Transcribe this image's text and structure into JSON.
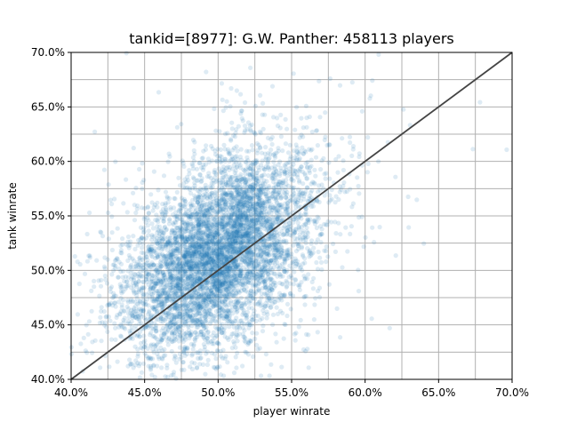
{
  "chart_data": {
    "type": "scatter",
    "title": "tankid=[8977]: G.W. Panther: 458113 players",
    "xlabel": "player winrate",
    "ylabel": "tank winrate",
    "xlim": [
      0.4,
      0.7
    ],
    "ylim": [
      0.4,
      0.7
    ],
    "x_ticks": [
      {
        "value": 0.4,
        "label": "40.0%"
      },
      {
        "value": 0.45,
        "label": "45.0%"
      },
      {
        "value": 0.5,
        "label": "50.0%"
      },
      {
        "value": 0.55,
        "label": "55.0%"
      },
      {
        "value": 0.6,
        "label": "60.0%"
      },
      {
        "value": 0.65,
        "label": "65.0%"
      },
      {
        "value": 0.7,
        "label": "70.0%"
      }
    ],
    "y_ticks": [
      {
        "value": 0.4,
        "label": "40.0%"
      },
      {
        "value": 0.45,
        "label": "45.0%"
      },
      {
        "value": 0.5,
        "label": "50.0%"
      },
      {
        "value": 0.55,
        "label": "55.0%"
      },
      {
        "value": 0.6,
        "label": "60.0%"
      },
      {
        "value": 0.65,
        "label": "65.0%"
      },
      {
        "value": 0.7,
        "label": "70.0%"
      }
    ],
    "minor_gridlines": [
      0.425,
      0.475,
      0.525,
      0.575,
      0.625,
      0.675
    ],
    "grid": true,
    "point_count": 458113,
    "point_color": "#1f77b4",
    "point_alpha": 0.15,
    "cluster": {
      "center": [
        0.5,
        0.515
      ],
      "std": [
        0.032,
        0.045
      ],
      "correlation": 0.45
    },
    "reference_line": {
      "from": [
        0.4,
        0.4
      ],
      "to": [
        0.7,
        0.7
      ],
      "color": "#444444"
    }
  }
}
